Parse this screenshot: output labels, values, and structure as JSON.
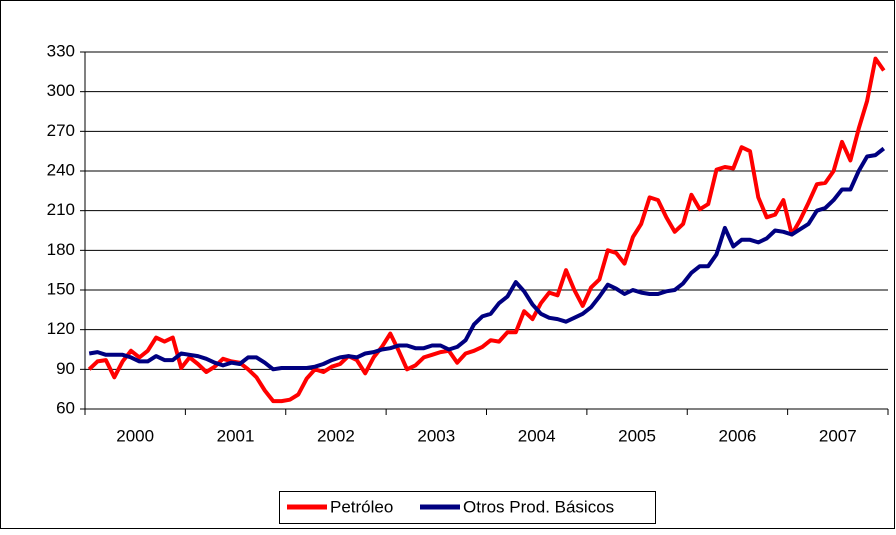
{
  "chart_data": {
    "type": "line",
    "categories": [
      null,
      null,
      null,
      null,
      null,
      null,
      "2000",
      null,
      null,
      null,
      null,
      null,
      null,
      null,
      null,
      null,
      null,
      null,
      "2001",
      null,
      null,
      null,
      null,
      null,
      null,
      null,
      null,
      null,
      null,
      null,
      "2002",
      null,
      null,
      null,
      null,
      null,
      null,
      null,
      null,
      null,
      null,
      null,
      "2003",
      null,
      null,
      null,
      null,
      null,
      null,
      null,
      null,
      null,
      null,
      null,
      "2004",
      null,
      null,
      null,
      null,
      null,
      null,
      null,
      null,
      null,
      null,
      null,
      "2005",
      null,
      null,
      null,
      null,
      null,
      null,
      null,
      null,
      null,
      null,
      null,
      "2006",
      null,
      null,
      null,
      null,
      null,
      null,
      null,
      null,
      null,
      null,
      null,
      "2007",
      null,
      null,
      null,
      null,
      null
    ],
    "series": [
      {
        "name": "Petróleo",
        "color": "#ff0000",
        "values": [
          90,
          96,
          97,
          84,
          96,
          104,
          99,
          104,
          114,
          111,
          114,
          91,
          99,
          94,
          88,
          92,
          98,
          96,
          95,
          90,
          84,
          74,
          66,
          66,
          67,
          71,
          83,
          90,
          88,
          92,
          94,
          100,
          97,
          87,
          99,
          107,
          117,
          104,
          90,
          93,
          99,
          101,
          103,
          104,
          95,
          102,
          104,
          107,
          112,
          111,
          118,
          118,
          134,
          128,
          140,
          148,
          146,
          165,
          150,
          138,
          152,
          158,
          180,
          178,
          170,
          190,
          200,
          220,
          218,
          205,
          194,
          200,
          222,
          211,
          215,
          241,
          243,
          242,
          258,
          255,
          220,
          205,
          207,
          218,
          192,
          203,
          216,
          230,
          231,
          240,
          262,
          248,
          272,
          293,
          325,
          316
        ]
      },
      {
        "name": "Otros Prod. Básicos",
        "color": "#000080",
        "values": [
          102,
          103,
          101,
          101,
          101,
          99,
          96,
          96,
          100,
          97,
          97,
          102,
          101,
          100,
          98,
          95,
          93,
          95,
          94,
          99,
          99,
          95,
          90,
          91,
          91,
          91,
          91,
          92,
          94,
          97,
          99,
          100,
          99,
          102,
          103,
          105,
          106,
          108,
          108,
          106,
          106,
          108,
          108,
          105,
          107,
          112,
          124,
          130,
          132,
          140,
          145,
          156,
          149,
          139,
          132,
          129,
          128,
          126,
          129,
          132,
          137,
          145,
          154,
          151,
          147,
          150,
          148,
          147,
          147,
          149,
          150,
          155,
          163,
          168,
          168,
          177,
          197,
          183,
          188,
          188,
          186,
          189,
          195,
          194,
          192,
          196,
          200,
          210,
          212,
          218,
          226,
          226,
          240,
          251,
          252,
          257
        ]
      }
    ],
    "ylim": [
      60,
      330
    ],
    "yticks": [
      60,
      90,
      120,
      150,
      180,
      210,
      240,
      270,
      300,
      330
    ],
    "grid": true,
    "legend": "bottom"
  }
}
